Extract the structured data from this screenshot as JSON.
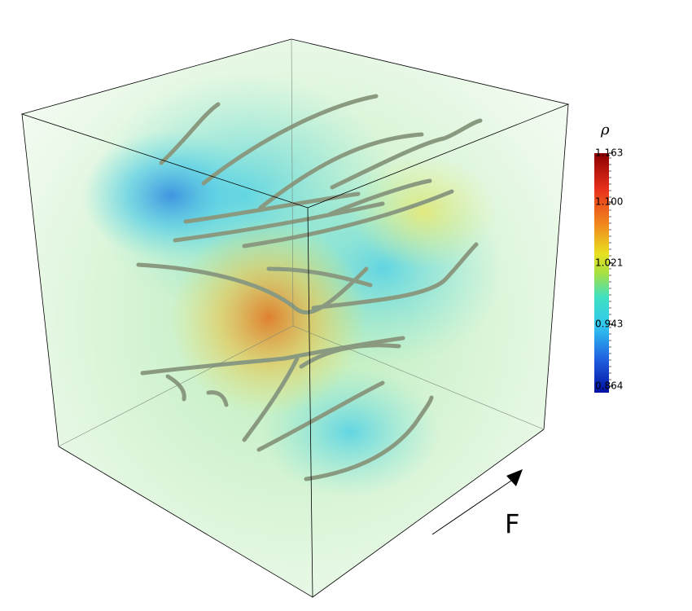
{
  "colorbar": {
    "title": "ρ",
    "labels": [
      "1.163",
      "1.100",
      "1.021",
      "0.943",
      "0.864"
    ]
  },
  "arrow_label": "F"
}
